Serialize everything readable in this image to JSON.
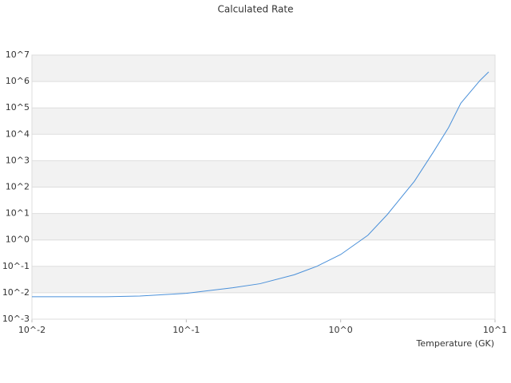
{
  "chart_data": {
    "type": "line",
    "title": "Calculated Rate",
    "x_label": "Temperature (GK)",
    "x": [
      0.01,
      0.03,
      0.05,
      0.1,
      0.2,
      0.3,
      0.5,
      0.7,
      1,
      1.5,
      2,
      3,
      4,
      5,
      6,
      8,
      9.1
    ],
    "series": [
      {
        "color": "#4a90d9",
        "values": [
          0.0071,
          0.0071,
          0.0075,
          0.0095,
          0.0155,
          0.022,
          0.048,
          0.1,
          0.28,
          1.5,
          9,
          165,
          2200,
          18000,
          150000,
          1100000,
          2300000
        ]
      }
    ],
    "xlim": [
      0.01,
      10
    ],
    "ylim": [
      0.001,
      10000000
    ],
    "xscale": "log",
    "yscale": "log",
    "grid": true,
    "xticks": [
      {
        "value": 0.01,
        "label": "10^-2"
      },
      {
        "value": 0.1,
        "label": "10^-1"
      },
      {
        "value": 1,
        "label": "10^0"
      },
      {
        "value": 10,
        "label": "10^1"
      }
    ],
    "yticks": [
      {
        "value": 0.001,
        "label": "10^-3"
      },
      {
        "value": 0.01,
        "label": "10^-2"
      },
      {
        "value": 0.1,
        "label": "10^-1"
      },
      {
        "value": 1,
        "label": "10^0"
      },
      {
        "value": 10,
        "label": "10^1"
      },
      {
        "value": 100,
        "label": "10^2"
      },
      {
        "value": 1000,
        "label": "10^3"
      },
      {
        "value": 10000,
        "label": "10^4"
      },
      {
        "value": 100000,
        "label": "10^5"
      },
      {
        "value": 1000000,
        "label": "10^6"
      },
      {
        "value": 10000000,
        "label": "10^7"
      }
    ]
  }
}
